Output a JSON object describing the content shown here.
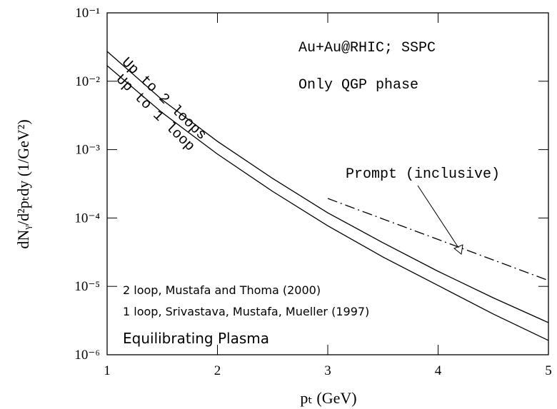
{
  "chart_data": {
    "type": "line",
    "xlabel": "pₜ (GeV)",
    "ylabel": "dNᵧ/d²pₜdy (1/GeV²)",
    "annotations": [
      "Au+Au@RHIC; SSPC",
      "Only QGP phase",
      "Prompt (inclusive)",
      "2 loop, Mustafa and Thoma (2000)",
      "1 loop, Srivastava, Mustafa, Mueller (1997)",
      "Equilibrating Plasma"
    ],
    "log_y": true,
    "xlim": [
      1,
      5
    ],
    "xticks": [
      1,
      2,
      3,
      4,
      5
    ],
    "ylim": [
      1e-06,
      0.1
    ],
    "yticks": [
      {
        "value": 0.1,
        "label": "10⁻¹"
      },
      {
        "value": 0.01,
        "label": "10⁻²"
      },
      {
        "value": 0.001,
        "label": "10⁻³"
      },
      {
        "value": 0.0001,
        "label": "10⁻⁴"
      },
      {
        "value": 1e-05,
        "label": "10⁻⁵"
      },
      {
        "value": 1e-06,
        "label": "10⁻⁶"
      }
    ],
    "series": [
      {
        "name": "Up to 2 loops",
        "color": "#000000",
        "style": "solid",
        "x": [
          1,
          1.5,
          2,
          2.5,
          3,
          3.5,
          4,
          4.5,
          5
        ],
        "values": [
          0.0273,
          0.00533,
          0.00132,
          0.000379,
          0.000119,
          4.35e-05,
          1.66e-05,
          6.8e-06,
          2.95e-06
        ]
      },
      {
        "name": "Up to 1 loop",
        "color": "#000000",
        "style": "solid",
        "x": [
          1,
          1.5,
          2,
          2.5,
          3,
          3.5,
          4,
          4.5,
          5
        ],
        "values": [
          0.0169,
          0.00346,
          0.00086,
          0.000245,
          7.7e-05,
          2.69e-05,
          1.03e-05,
          3.94e-06,
          1.62e-06
        ]
      },
      {
        "color": "#000000",
        "style": "dashdot",
        "x": [
          3,
          5
        ],
        "values": [
          0.000193,
          1.22e-05
        ]
      }
    ]
  }
}
